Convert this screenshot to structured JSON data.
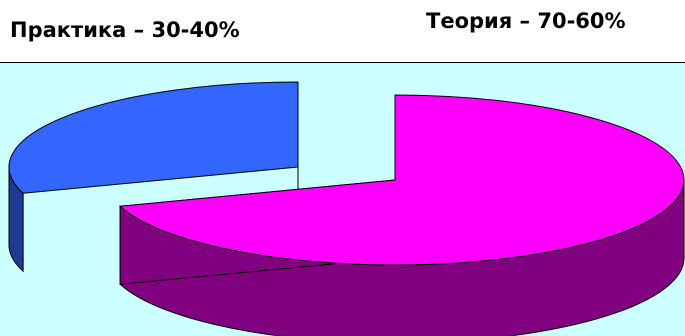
{
  "chart_data": {
    "type": "pie",
    "style": "3d-exploded",
    "categories": [
      "Практика – 30-40%",
      "Теория – 70-60%"
    ],
    "values": [
      30,
      70
    ],
    "colors": {
      "Практика – 30-40%": {
        "top": "#3366ff",
        "side": "#1f3a93"
      },
      "Теория – 70-60%": {
        "top": "#ff00ff",
        "side": "#800080"
      }
    },
    "plot_background": "#ccffff",
    "title": "",
    "legend": "none"
  }
}
